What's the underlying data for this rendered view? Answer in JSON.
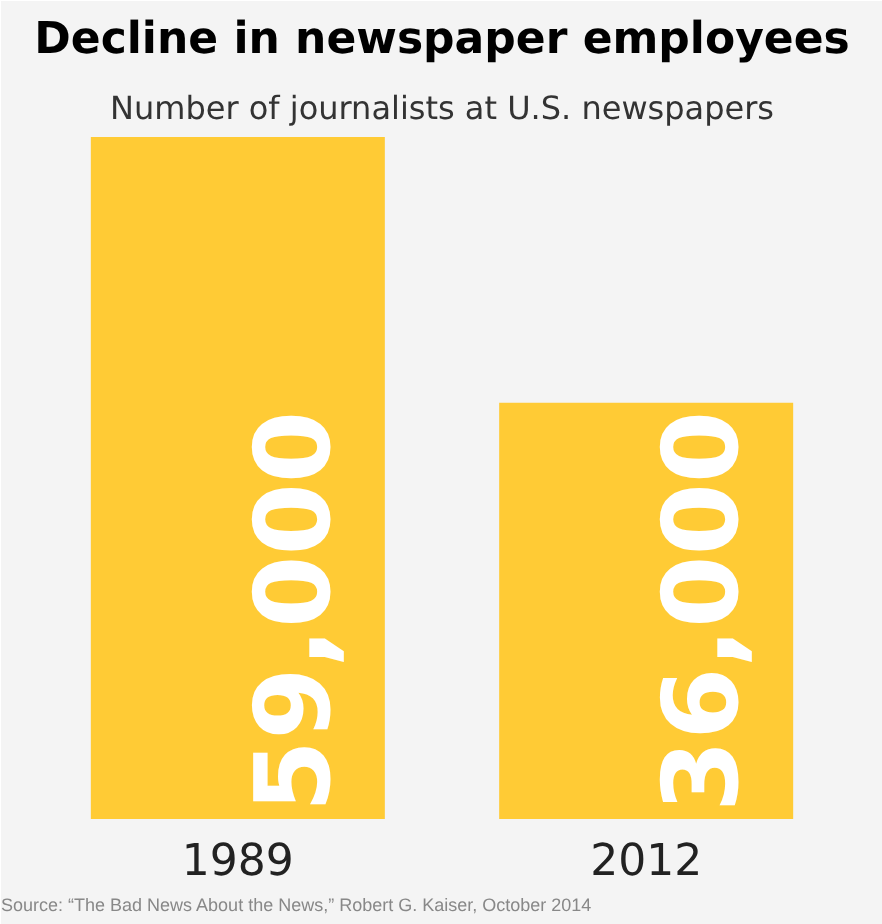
{
  "chart_data": {
    "type": "bar",
    "title": "Decline in newspaper employees",
    "subtitle": "Number of journalists at U.S. newspapers",
    "categories": [
      "1989",
      "2012"
    ],
    "values": [
      59000,
      36000
    ],
    "color": "#ffcb35",
    "value_labels": [
      "59,000",
      "36,000"
    ],
    "annotations": [
      "Source: “The Bad News About the News,” Robert G. Kaiser, October 2014"
    ]
  }
}
